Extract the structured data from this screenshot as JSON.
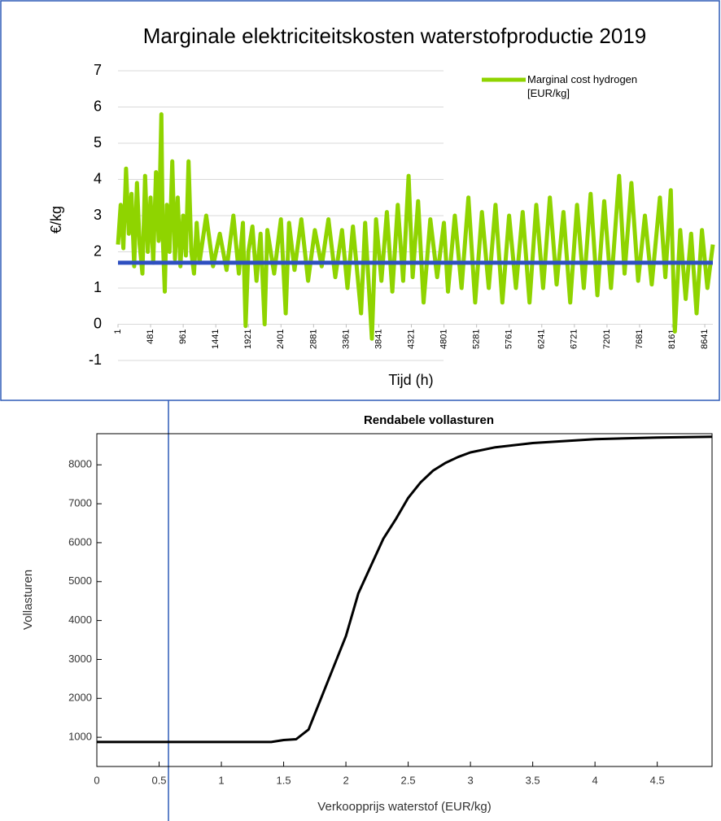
{
  "chart_data": [
    {
      "type": "line",
      "title": "Marginale elektriciteitskosten waterstofproductie 2019",
      "xlabel": "Tijd (h)",
      "ylabel": "€/kg",
      "xlim": [
        1,
        8760
      ],
      "xticks": [
        1,
        481,
        961,
        1441,
        1921,
        2401,
        2881,
        3361,
        3841,
        4321,
        4801,
        5281,
        5761,
        6241,
        6721,
        7201,
        7681,
        8161,
        8641
      ],
      "ylim": [
        -1,
        7
      ],
      "yticks": [
        -1,
        0,
        1,
        2,
        3,
        4,
        5,
        6,
        7
      ],
      "grid": true,
      "legend": "top-right",
      "series": [
        {
          "name": "Marginal cost hydrogen [EUR/kg]",
          "color": "#8fd400",
          "x": [
            1,
            40,
            80,
            120,
            160,
            200,
            240,
            280,
            320,
            360,
            400,
            440,
            480,
            520,
            560,
            600,
            640,
            660,
            690,
            720,
            760,
            800,
            840,
            880,
            920,
            960,
            1000,
            1040,
            1080,
            1120,
            1160,
            1200,
            1300,
            1400,
            1500,
            1600,
            1700,
            1780,
            1840,
            1880,
            1920,
            1980,
            2040,
            2100,
            2160,
            2200,
            2300,
            2400,
            2470,
            2520,
            2600,
            2700,
            2800,
            2900,
            3000,
            3100,
            3200,
            3300,
            3380,
            3460,
            3580,
            3640,
            3740,
            3800,
            3880,
            3960,
            4040,
            4120,
            4200,
            4280,
            4340,
            4420,
            4500,
            4600,
            4700,
            4800,
            4860,
            4960,
            5060,
            5160,
            5260,
            5360,
            5460,
            5560,
            5660,
            5760,
            5860,
            5960,
            6060,
            6160,
            6260,
            6360,
            6460,
            6560,
            6660,
            6760,
            6860,
            6960,
            7060,
            7160,
            7260,
            7380,
            7460,
            7560,
            7660,
            7760,
            7860,
            7980,
            8060,
            8140,
            8200,
            8280,
            8360,
            8440,
            8520,
            8600,
            8680,
            8760
          ],
          "values": [
            2.2,
            3.3,
            2.1,
            4.3,
            2.5,
            3.6,
            1.6,
            3.9,
            2.2,
            1.4,
            4.1,
            2.0,
            3.5,
            1.7,
            4.2,
            2.3,
            5.8,
            2.4,
            0.9,
            3.3,
            2.0,
            4.5,
            1.8,
            3.5,
            1.6,
            3.0,
            1.9,
            4.5,
            2.0,
            1.4,
            2.8,
            1.7,
            3.0,
            1.6,
            2.5,
            1.5,
            3.0,
            1.4,
            2.8,
            -0.05,
            2.0,
            2.7,
            1.2,
            2.5,
            0.0,
            2.6,
            1.4,
            2.9,
            0.3,
            2.8,
            1.5,
            2.9,
            1.2,
            2.6,
            1.6,
            2.9,
            1.3,
            2.6,
            1.0,
            2.7,
            0.3,
            2.8,
            -0.4,
            2.9,
            1.2,
            3.1,
            0.9,
            3.3,
            1.2,
            4.1,
            1.3,
            3.4,
            0.6,
            2.9,
            1.3,
            2.8,
            0.9,
            3.0,
            1.0,
            3.5,
            0.6,
            3.1,
            1.0,
            3.3,
            0.6,
            3.0,
            1.0,
            3.1,
            0.6,
            3.3,
            1.0,
            3.5,
            1.1,
            3.1,
            0.6,
            3.3,
            1.0,
            3.6,
            0.8,
            3.4,
            1.0,
            4.1,
            1.4,
            3.9,
            1.2,
            3.0,
            1.1,
            3.5,
            1.3,
            3.7,
            -0.2,
            2.6,
            0.7,
            2.5,
            0.3,
            2.6,
            1.0,
            2.2
          ]
        },
        {
          "color": "#2e4fc0",
          "x": [
            1,
            8760
          ],
          "values": [
            1.7,
            1.7
          ]
        }
      ]
    },
    {
      "type": "line",
      "title": "Rendabele vollasturen",
      "xlabel": "Verkoopprijs waterstof (EUR/kg)",
      "ylabel": "Vollasturen",
      "xlim": [
        0,
        4.94
      ],
      "xticks": [
        0,
        0.5,
        1,
        1.5,
        2,
        2.5,
        3,
        3.5,
        4,
        4.5
      ],
      "ylim": [
        250,
        8800
      ],
      "yticks": [
        1000,
        2000,
        3000,
        4000,
        5000,
        6000,
        7000,
        8000
      ],
      "grid": false,
      "series": [
        {
          "color": "#000000",
          "x": [
            0,
            1.4,
            1.5,
            1.6,
            1.7,
            1.8,
            1.9,
            2.0,
            2.1,
            2.2,
            2.3,
            2.4,
            2.5,
            2.6,
            2.7,
            2.8,
            2.9,
            3.0,
            3.2,
            3.5,
            4.0,
            4.5,
            4.94
          ],
          "values": [
            880,
            880,
            930,
            950,
            1200,
            2000,
            2800,
            3600,
            4700,
            5400,
            6100,
            6600,
            7150,
            7550,
            7850,
            8050,
            8200,
            8320,
            8450,
            8560,
            8660,
            8700,
            8720
          ]
        }
      ]
    }
  ]
}
